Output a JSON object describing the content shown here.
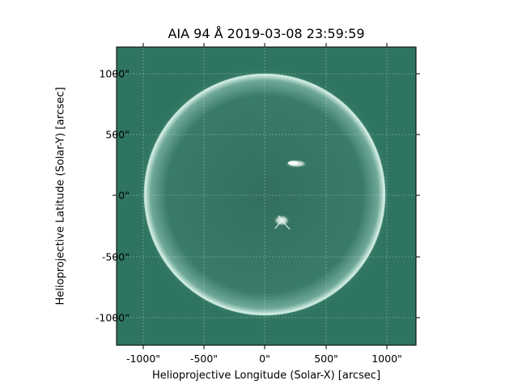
{
  "title": "AIA 94 Å 2019-03-08 23:59:59",
  "xlabel": "Helioprojective Longitude (Solar-X) [arcsec]",
  "ylabel": "Helioprojective Latitude (Solar-Y) [arcsec]",
  "xticks": [
    "-1000\"",
    "-500\"",
    "0\"",
    "500\"",
    "1000\""
  ],
  "yticks": [
    "1000\"",
    "500\"",
    "0\"",
    "-500\"",
    "-1000\""
  ],
  "colors": {
    "background": "#2e7460",
    "disk": "#336f5e",
    "limb": "#d4eee4",
    "grid": "#ffffff",
    "active_region": "#ffffff"
  }
}
